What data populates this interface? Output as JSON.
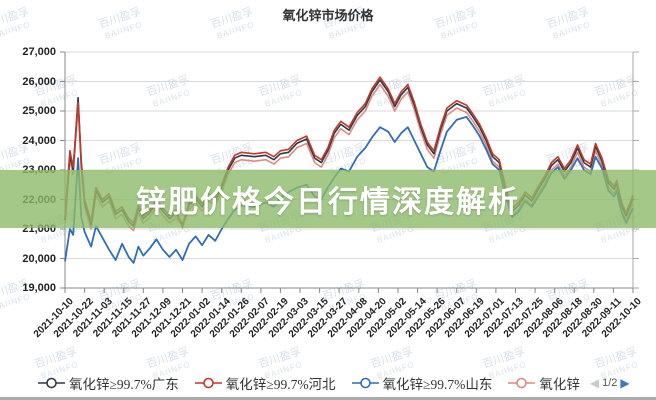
{
  "title": "氧化锌市场价格",
  "watermark": {
    "line1": "百川盈孚",
    "line2": "BAIINFO"
  },
  "banner": {
    "text": "锌肥价格今日行情深度解析",
    "bg_color": "#8cba6a",
    "text_color": "#ffffff"
  },
  "legend": {
    "items": [
      {
        "label": "氧化锌≥99.7%广东",
        "color": "#2e3a46"
      },
      {
        "label": "氧化锌≥99.7%河北",
        "color": "#c0392b"
      },
      {
        "label": "氧化锌≥99.7%山东",
        "color": "#2f6db8"
      },
      {
        "label": "氧化锌",
        "color": "#de8a80"
      }
    ],
    "pager": {
      "prev_icon": "◀",
      "label": "1/2",
      "next_icon": "▶"
    }
  },
  "chart_data": {
    "type": "line",
    "title": "氧化锌市场价格",
    "xlabel": "",
    "ylabel": "",
    "ylim": [
      19000,
      27000
    ],
    "grid": true,
    "legend_position": "bottom",
    "y_ticks": [
      "27,000",
      "26,000",
      "25,000",
      "24,000",
      "23,000",
      "22,000",
      "21,000",
      "20,000",
      "19,000"
    ],
    "x_tick_labels": [
      "2021-10-10",
      "2021-10-22",
      "2021-11-03",
      "2021-11-15",
      "2021-11-27",
      "2021-12-09",
      "2021-12-21",
      "2022-01-02",
      "2022-01-14",
      "2022-01-26",
      "2022-02-07",
      "2022-02-19",
      "2022-03-03",
      "2022-03-15",
      "2022-03-27",
      "2022-04-08",
      "2022-04-20",
      "2022-05-02",
      "2022-05-14",
      "2022-05-26",
      "2022-06-07",
      "2022-06-19",
      "2022-07-01",
      "2022-07-13",
      "2022-07-25",
      "2022-08-06",
      "2022-08-18",
      "2022-08-30",
      "2022-09-11",
      "2022-10-10"
    ],
    "x": [
      "2021-10-10",
      "2021-10-13",
      "2021-10-15",
      "2021-10-18",
      "2021-10-20",
      "2021-10-22",
      "2021-10-26",
      "2021-10-29",
      "2021-11-02",
      "2021-11-06",
      "2021-11-10",
      "2021-11-14",
      "2021-11-18",
      "2021-11-21",
      "2021-11-24",
      "2021-11-27",
      "2021-12-01",
      "2021-12-05",
      "2021-12-09",
      "2021-12-13",
      "2021-12-17",
      "2021-12-21",
      "2021-12-25",
      "2021-12-29",
      "2022-01-02",
      "2022-01-06",
      "2022-01-10",
      "2022-01-14",
      "2022-01-18",
      "2022-01-22",
      "2022-01-26",
      "2022-02-03",
      "2022-02-10",
      "2022-02-15",
      "2022-02-19",
      "2022-02-24",
      "2022-03-01",
      "2022-03-07",
      "2022-03-12",
      "2022-03-16",
      "2022-03-20",
      "2022-03-24",
      "2022-03-28",
      "2022-04-02",
      "2022-04-07",
      "2022-04-12",
      "2022-04-16",
      "2022-04-21",
      "2022-04-26",
      "2022-04-30",
      "2022-05-04",
      "2022-05-08",
      "2022-05-12",
      "2022-05-16",
      "2022-05-20",
      "2022-05-24",
      "2022-05-28",
      "2022-06-01",
      "2022-06-07",
      "2022-06-13",
      "2022-06-17",
      "2022-06-21",
      "2022-06-25",
      "2022-06-29",
      "2022-07-03",
      "2022-07-07",
      "2022-07-11",
      "2022-07-15",
      "2022-07-19",
      "2022-07-23",
      "2022-07-27",
      "2022-07-31",
      "2022-08-04",
      "2022-08-08",
      "2022-08-12",
      "2022-08-16",
      "2022-08-20",
      "2022-08-24",
      "2022-08-28",
      "2022-08-31",
      "2022-09-04",
      "2022-09-08",
      "2022-09-12",
      "2022-09-16",
      "2022-09-20",
      "2022-09-24",
      "2022-09-28",
      "2022-09-30",
      "2022-10-10"
    ],
    "series": [
      {
        "name": "氧化锌≥99.7%广东",
        "color": "#2e3a46",
        "width": 1.6,
        "values": [
          21300,
          23500,
          23000,
          25450,
          23200,
          21900,
          21150,
          22300,
          21900,
          22100,
          21500,
          21650,
          21250,
          21100,
          21700,
          21350,
          21550,
          21900,
          21600,
          21350,
          21550,
          21150,
          21800,
          22050,
          21750,
          22100,
          21950,
          22400,
          23000,
          23400,
          23500,
          23450,
          23500,
          23350,
          23550,
          23600,
          23900,
          24050,
          23400,
          23250,
          23650,
          24250,
          24550,
          24350,
          24850,
          25150,
          25650,
          26050,
          25650,
          25150,
          25550,
          25800,
          25200,
          24450,
          23850,
          23550,
          24350,
          25000,
          25250,
          25100,
          24800,
          24450,
          24000,
          23450,
          23250,
          22300,
          21600,
          21800,
          22150,
          21950,
          22350,
          22700,
          23150,
          23350,
          22950,
          23250,
          23750,
          23250,
          23100,
          23800,
          23300,
          22550,
          22350,
          22550,
          22100,
          21750,
          21550,
          21450,
          22050
        ]
      },
      {
        "name": "氧化锌≥99.7%河北",
        "color": "#c0392b",
        "width": 1.6,
        "values": [
          21400,
          23650,
          23100,
          25300,
          23300,
          22000,
          21250,
          22400,
          22000,
          22200,
          21600,
          21750,
          21350,
          21200,
          21800,
          21450,
          21650,
          22000,
          21700,
          21450,
          21650,
          21050,
          21900,
          22150,
          21850,
          22200,
          22050,
          22500,
          23100,
          23500,
          23600,
          23550,
          23600,
          23450,
          23650,
          23700,
          24000,
          24150,
          23500,
          23350,
          23750,
          24350,
          24650,
          24450,
          24950,
          25250,
          25750,
          26150,
          25750,
          25250,
          25650,
          25900,
          25300,
          24550,
          23950,
          23650,
          24450,
          25100,
          25350,
          25200,
          24900,
          24550,
          24100,
          23550,
          23350,
          22400,
          21700,
          21900,
          22250,
          22050,
          22450,
          22800,
          23250,
          23450,
          23050,
          23350,
          23850,
          23350,
          23200,
          23900,
          23400,
          22650,
          22450,
          22650,
          22200,
          21850,
          21650,
          21550,
          22150
        ]
      },
      {
        "name": "氧化锌≥99.7%山东",
        "color": "#2f6db8",
        "width": 1.8,
        "values": [
          19900,
          21000,
          20800,
          23400,
          21400,
          20900,
          20400,
          21100,
          20700,
          20300,
          19950,
          20500,
          20050,
          19850,
          20400,
          20100,
          20350,
          20650,
          20300,
          20050,
          20300,
          19950,
          20500,
          20750,
          20450,
          20800,
          20600,
          21000,
          21350,
          21650,
          21800,
          21750,
          21900,
          21750,
          22050,
          22250,
          22400,
          22500,
          22100,
          22000,
          22400,
          22750,
          23050,
          22950,
          23450,
          23750,
          24100,
          24450,
          24300,
          23950,
          24250,
          24450,
          24000,
          23550,
          23100,
          22950,
          23650,
          24300,
          24700,
          24800,
          24500,
          24150,
          23700,
          23200,
          23000,
          22100,
          21400,
          21600,
          21950,
          21750,
          22100,
          22450,
          22900,
          23100,
          22700,
          23000,
          23400,
          23000,
          22850,
          23450,
          23050,
          22300,
          22100,
          22300,
          21850,
          21500,
          21300,
          21200,
          21700
        ]
      },
      {
        "name": "氧化锌",
        "color": "#de8a80",
        "width": 1.6,
        "values": [
          21150,
          23350,
          22850,
          25150,
          23050,
          21750,
          21000,
          22150,
          21750,
          21950,
          21350,
          21500,
          21100,
          20950,
          21550,
          21200,
          21400,
          21750,
          21450,
          21200,
          21400,
          21100,
          21650,
          21900,
          21600,
          21950,
          21800,
          22250,
          22850,
          23250,
          23350,
          23300,
          23350,
          23200,
          23400,
          23450,
          23750,
          23900,
          23250,
          23100,
          23500,
          24100,
          24400,
          24200,
          24700,
          25000,
          25500,
          25900,
          25500,
          25000,
          25400,
          25650,
          25050,
          24300,
          23700,
          23400,
          24200,
          24850,
          25100,
          24950,
          24650,
          24300,
          23850,
          23300,
          23100,
          22150,
          21450,
          21650,
          22000,
          21800,
          22200,
          22550,
          23000,
          23200,
          22800,
          23100,
          23600,
          23100,
          22950,
          23650,
          23150,
          22400,
          22200,
          22400,
          21950,
          21600,
          21400,
          21300,
          21900
        ]
      }
    ]
  }
}
